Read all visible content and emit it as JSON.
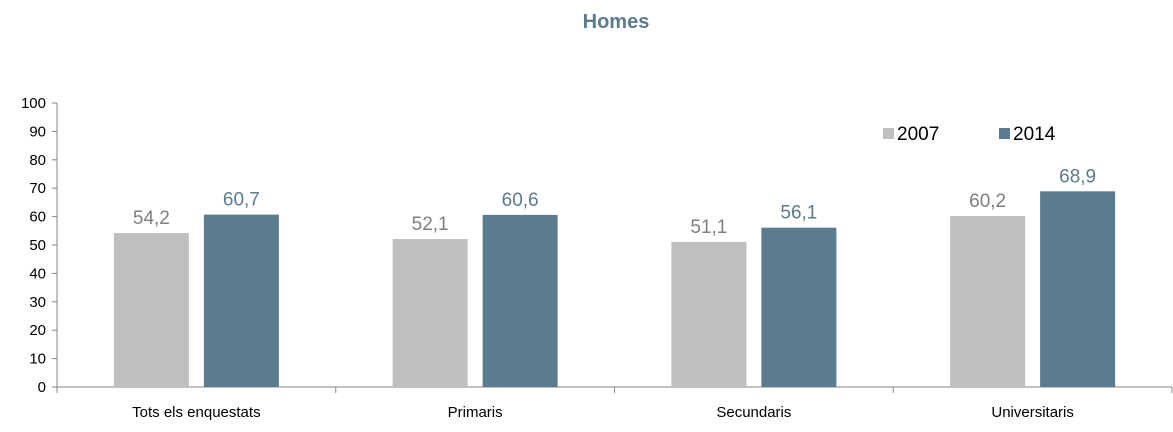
{
  "chart_data": {
    "type": "bar",
    "title": "Homes",
    "categories": [
      "Tots els enquestats",
      "Primaris",
      "Secundaris",
      "Universitaris"
    ],
    "series": [
      {
        "name": "2007",
        "values": [
          54.2,
          52.1,
          51.1,
          60.2
        ],
        "labels": [
          "54,2",
          "52,1",
          "51,1",
          "60,2"
        ],
        "color": "#bfbfbf",
        "label_color": "#7f7f7f"
      },
      {
        "name": "2014",
        "values": [
          60.7,
          60.6,
          56.1,
          68.9
        ],
        "labels": [
          "60,7",
          "60,6",
          "56,1",
          "68,9"
        ],
        "color": "#5b7b8e",
        "label_color": "#5b7b8e"
      }
    ],
    "ylim": [
      0,
      100
    ],
    "yticks": [
      "0",
      "10",
      "20",
      "30",
      "40",
      "50",
      "60",
      "70",
      "80",
      "90",
      "100"
    ],
    "xlabel": "",
    "ylabel": "",
    "grid": false,
    "legend_position": "top-right",
    "title_color": "#5b7b8e"
  }
}
